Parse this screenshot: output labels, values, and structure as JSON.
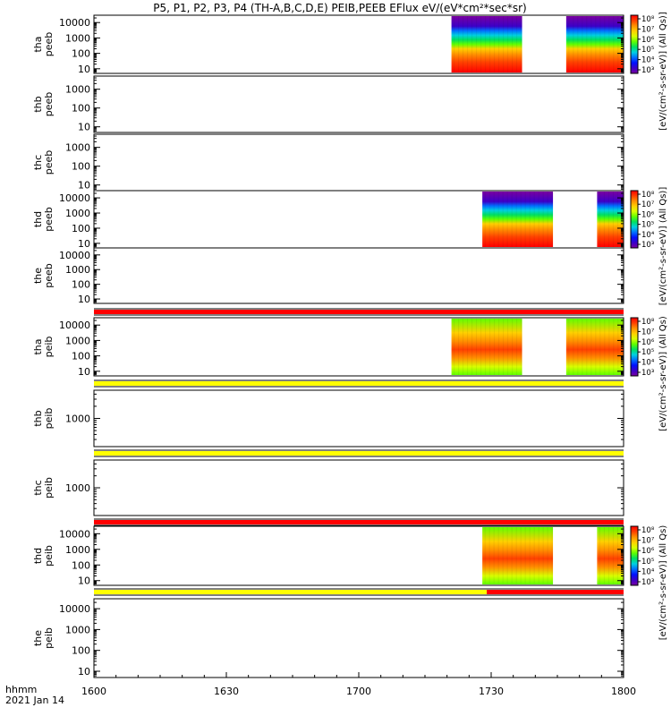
{
  "chart_data": {
    "type": "heatmap",
    "title": "P5, P1, P2, P3, P4 (TH-A,B,C,D,E) PEIB,PEEB EFlux eV/(eV*cm²*sec*sr)",
    "x_axis": {
      "label": "hhmm",
      "date_label": "2021 Jan 14",
      "range": [
        "16:00",
        "18:00"
      ],
      "ticks": [
        "1600",
        "1630",
        "1700",
        "1730",
        "1800"
      ]
    },
    "colorbar": {
      "label_peeb": "[eV/(cm²-s-sr-eV)] (All Qs)]",
      "label_peib": "[eV/(cm²-s-sr-eV)] (All Qs)",
      "ticks": [
        "10³",
        "10⁴",
        "10⁵",
        "10⁶",
        "10⁷",
        "10⁸"
      ],
      "range": [
        1000,
        100000000
      ],
      "scale": "log"
    },
    "panels": [
      {
        "probe": "tha",
        "label": "tha peeb",
        "line1": "tha",
        "line2": "peeb",
        "yticks": [
          "10",
          "100",
          "1000",
          "10000"
        ],
        "ylim": [
          5,
          30000
        ],
        "yscale": "log",
        "has_data": true,
        "colorbar": true,
        "flag_bar": null,
        "intervals": [
          [
            "17:21",
            "17:37"
          ],
          [
            "17:47",
            "18:00"
          ]
        ]
      },
      {
        "probe": "thb",
        "label": "thb peeb",
        "line1": "thb",
        "line2": "peeb",
        "yticks": [
          "10",
          "100",
          "1000"
        ],
        "ylim": [
          5,
          5000
        ],
        "yscale": "log",
        "has_data": false,
        "colorbar": false,
        "flag_bar": null,
        "intervals": []
      },
      {
        "probe": "thc",
        "label": "thc peeb",
        "line1": "thc",
        "line2": "peeb",
        "yticks": [
          "10",
          "100",
          "1000"
        ],
        "ylim": [
          5,
          5000
        ],
        "yscale": "log",
        "has_data": false,
        "colorbar": false,
        "flag_bar": null,
        "intervals": []
      },
      {
        "probe": "thd",
        "label": "thd peeb",
        "line1": "thd",
        "line2": "peeb",
        "yticks": [
          "10",
          "100",
          "1000",
          "10000"
        ],
        "ylim": [
          5,
          30000
        ],
        "yscale": "log",
        "has_data": true,
        "colorbar": true,
        "flag_bar": null,
        "intervals": [
          [
            "17:28",
            "17:44"
          ],
          [
            "17:54",
            "18:00"
          ]
        ]
      },
      {
        "probe": "the",
        "label": "the peeb",
        "line1": "the",
        "line2": "peeb",
        "yticks": [
          "10",
          "100",
          "1000",
          "10000"
        ],
        "ylim": [
          5,
          30000
        ],
        "yscale": "log",
        "has_data": false,
        "colorbar": false,
        "flag_bar": "red",
        "intervals": []
      },
      {
        "probe": "tha",
        "label": "tha peib",
        "line1": "tha",
        "line2": "peib",
        "yticks": [
          "10",
          "100",
          "1000",
          "10000"
        ],
        "ylim": [
          5,
          30000
        ],
        "yscale": "log",
        "has_data": true,
        "colorbar": true,
        "flag_bar": "yellow",
        "intervals": [
          [
            "17:21",
            "17:37"
          ],
          [
            "17:47",
            "18:00"
          ]
        ]
      },
      {
        "probe": "thb",
        "label": "thb peib",
        "line1": "thb",
        "line2": "peib",
        "yticks": [
          "1000"
        ],
        "ylim": [
          200,
          5000
        ],
        "yscale": "log",
        "has_data": false,
        "colorbar": false,
        "flag_bar": "yellow",
        "intervals": []
      },
      {
        "probe": "thc",
        "label": "thc peib",
        "line1": "thc",
        "line2": "peib",
        "yticks": [
          "1000"
        ],
        "ylim": [
          200,
          5000
        ],
        "yscale": "log",
        "has_data": false,
        "colorbar": false,
        "flag_bar": "red",
        "intervals": []
      },
      {
        "probe": "thd",
        "label": "thd peib",
        "line1": "thd",
        "line2": "peib",
        "yticks": [
          "10",
          "100",
          "1000",
          "10000"
        ],
        "ylim": [
          5,
          30000
        ],
        "yscale": "log",
        "has_data": true,
        "colorbar": true,
        "flag_bar": "yellow_red",
        "intervals": [
          [
            "17:28",
            "17:44"
          ],
          [
            "17:54",
            "18:00"
          ]
        ]
      },
      {
        "probe": "the",
        "label": "the peib",
        "line1": "the",
        "line2": "peib",
        "yticks": [
          "10",
          "100",
          "1000",
          "10000"
        ],
        "ylim": [
          5,
          30000
        ],
        "yscale": "log",
        "has_data": false,
        "colorbar": false,
        "flag_bar": null,
        "intervals": []
      }
    ],
    "flag_colors": {
      "red": "#ff0000",
      "yellow": "#ffff00"
    },
    "colormap": [
      "#7a00a0",
      "#3c00c8",
      "#0010ff",
      "#0070ff",
      "#00d0e0",
      "#00e060",
      "#60ff00",
      "#d8ff00",
      "#ffd000",
      "#ff9000",
      "#ff4000",
      "#ff0000"
    ]
  }
}
